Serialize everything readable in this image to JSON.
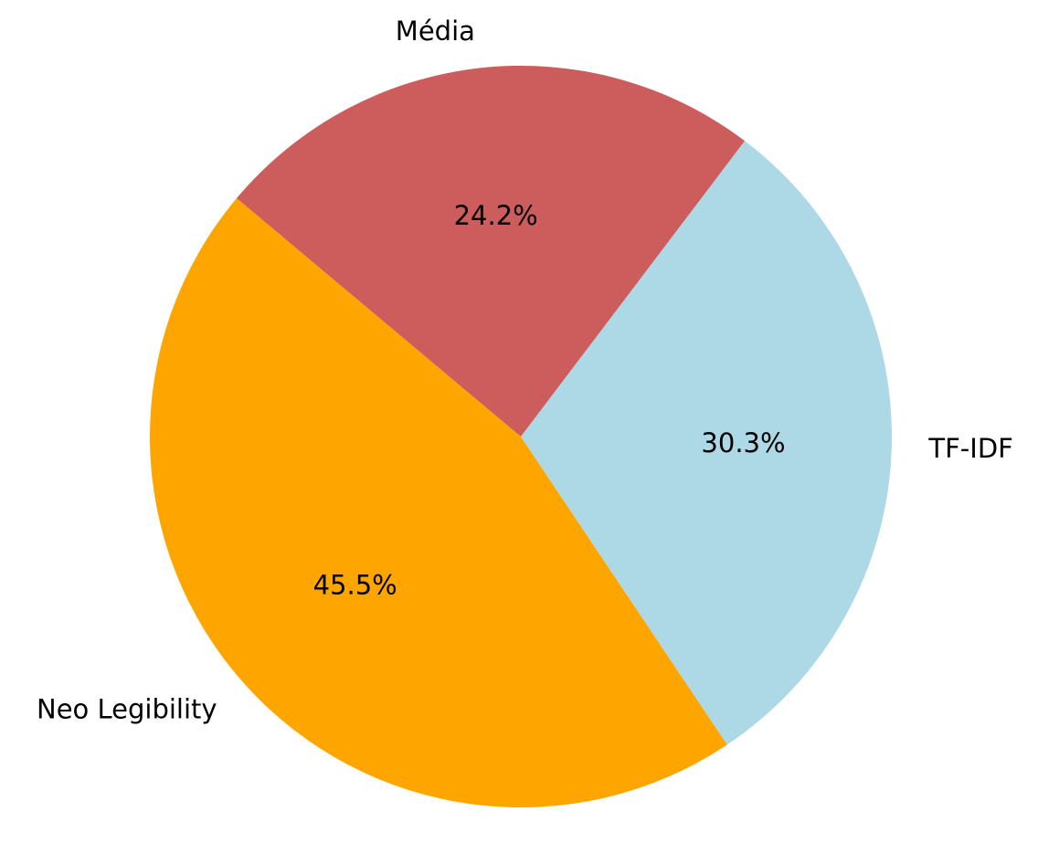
{
  "chart_data": {
    "type": "pie",
    "labels": [
      "Neo Legibility",
      "TF-IDF",
      "Média"
    ],
    "values": [
      45.5,
      30.3,
      24.2
    ],
    "value_labels": [
      "45.5%",
      "30.3%",
      "24.2%"
    ],
    "colors": [
      "#ffa500",
      "#add8e6",
      "#cd5c5c"
    ],
    "start_angle_deg": 140,
    "direction": "counterclockwise",
    "title": "",
    "legend": "none"
  }
}
